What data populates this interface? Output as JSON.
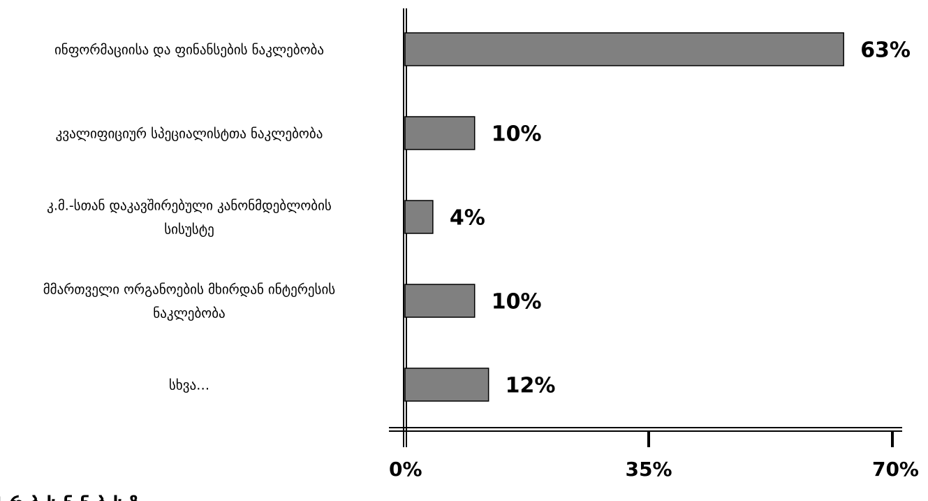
{
  "chart_data": {
    "type": "bar",
    "orientation": "horizontal",
    "categories": [
      [
        "ინფორმაციისა და ფინანსების ნაკლებობა"
      ],
      [
        "კვალიფიციურ სპეციალისტთა ნაკლებობა"
      ],
      [
        "კ.მ.-სთან დაკავშირებული კანონმდებლობის",
        "სისუსტე"
      ],
      [
        "მმართველი ორგანოების მხირდან ინტერესის",
        "ნაკლებობა"
      ],
      [
        "სხვა…"
      ]
    ],
    "values": [
      63,
      10,
      4,
      10,
      12
    ],
    "data_labels": [
      "63%",
      "10%",
      "4%",
      "10%",
      "12%"
    ],
    "xlim": [
      0,
      70
    ],
    "x_ticks": [
      0,
      35,
      70
    ],
    "x_tick_labels": [
      "0%",
      "35%",
      "70%"
    ],
    "grid": false,
    "colors": {
      "bar": "#808080",
      "outline": "#000000"
    }
  }
}
